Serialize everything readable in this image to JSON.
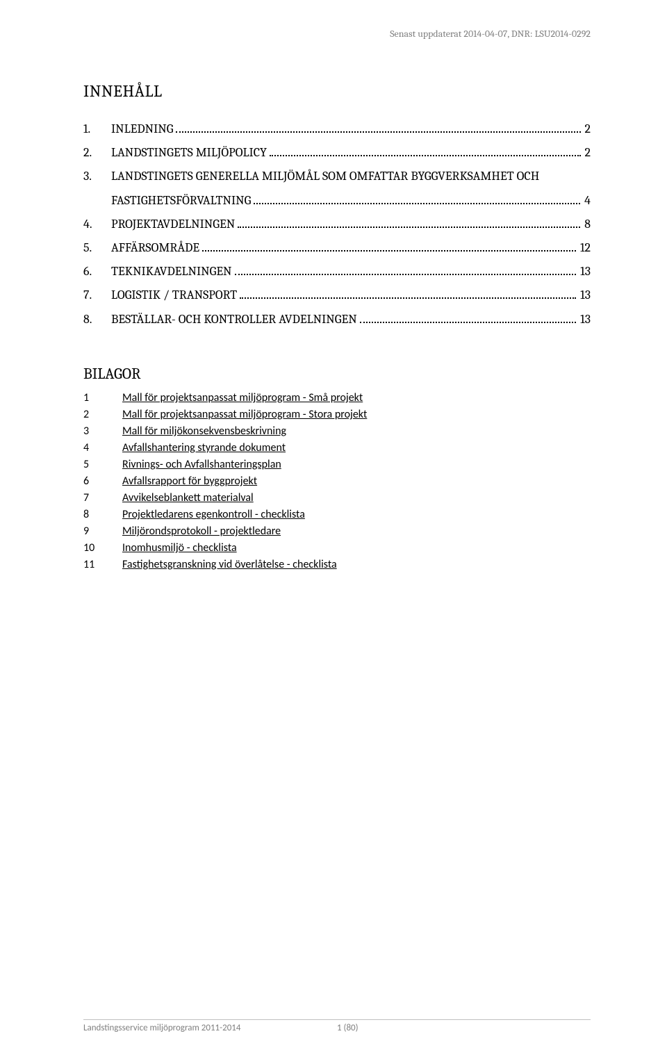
{
  "header": {
    "updated_text": "Senast uppdaterat 2014-04-07, DNR: LSU2014-0292"
  },
  "toc": {
    "title": "INNEHÅLL",
    "items": [
      {
        "num": "1.",
        "label": "INLEDNING",
        "page": "2"
      },
      {
        "num": "2.",
        "label": "LANDSTINGETS MILJÖPOLICY",
        "page": "2"
      },
      {
        "num": "3.",
        "label": "LANDSTINGETS GENERELLA MILJÖMÅL SOM  OMFATTAR BYGGVERKSAMHET OCH FASTIGHETSFÖRVALTNING",
        "page": "4",
        "wrap": true
      },
      {
        "num": "4.",
        "label": "PROJEKTAVDELNINGEN",
        "page": "8"
      },
      {
        "num": "5.",
        "label": "AFFÄRSOMRÅDE",
        "page": "12"
      },
      {
        "num": "6.",
        "label": "TEKNIKAVDELNINGEN",
        "page": "13"
      },
      {
        "num": "7.",
        "label": "LOGISTIK / TRANSPORT",
        "page": "13"
      },
      {
        "num": "8.",
        "label": "BESTÄLLAR- OCH KONTROLLER AVDELNINGEN",
        "page": "13"
      }
    ]
  },
  "appendix": {
    "title": "BILAGOR",
    "items": [
      {
        "num": "1",
        "label": "Mall för projektsanpassat miljöprogram - Små projekt"
      },
      {
        "num": "2",
        "label": "Mall för projektsanpassat miljöprogram - Stora projekt"
      },
      {
        "num": "3",
        "label": "Mall för miljökonsekvensbeskrivning"
      },
      {
        "num": "4",
        "label": "Avfallshantering styrande dokument"
      },
      {
        "num": "5",
        "label": "Rivnings- och Avfallshanteringsplan"
      },
      {
        "num": "6",
        "label": "Avfallsrapport för byggprojekt"
      },
      {
        "num": "7",
        "label": "Avvikelseblankett materialval"
      },
      {
        "num": "8",
        "label": "Projektledarens egenkontroll - checklista"
      },
      {
        "num": "9",
        "label": "Miljörondsprotokoll - projektledare"
      },
      {
        "num": "10",
        "label": "Inomhusmiljö - checklista"
      },
      {
        "num": "11",
        "label": "Fastighetsgranskning vid överlåtelse - checklista"
      }
    ]
  },
  "footer": {
    "left": "Landstingsservice miljöprogram 2011-2014",
    "center": "1 (80)"
  }
}
